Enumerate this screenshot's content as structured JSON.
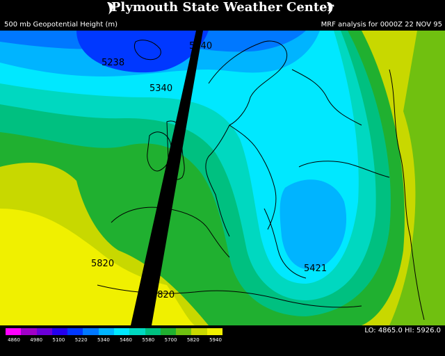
{
  "header": {
    "title": "Plymouth State Weather Center",
    "left_caption": "500 mb Geopotential Height (m)",
    "right_caption": "MRF analysis for 0000Z 22 NOV 95"
  },
  "map": {
    "contour_labels": [
      {
        "text": "5238"
      },
      {
        "text": "5340"
      },
      {
        "text": "5340"
      },
      {
        "text": "5820"
      },
      {
        "text": "5820"
      },
      {
        "text": "5421"
      }
    ]
  },
  "legend": {
    "colors": [
      "#ff00ff",
      "#a000c8",
      "#6a00d8",
      "#2400ee",
      "#0038ff",
      "#0078ff",
      "#00b4ff",
      "#00e8ff",
      "#00d8c0",
      "#00c080",
      "#20b030",
      "#70c010",
      "#c8d800",
      "#f0f000"
    ],
    "ticks": [
      "4860",
      "4980",
      "5100",
      "5220",
      "5340",
      "5460",
      "5580",
      "5700",
      "5820",
      "5940"
    ],
    "lo_hi": "LO: 4865.0   HI: 5926.0"
  }
}
